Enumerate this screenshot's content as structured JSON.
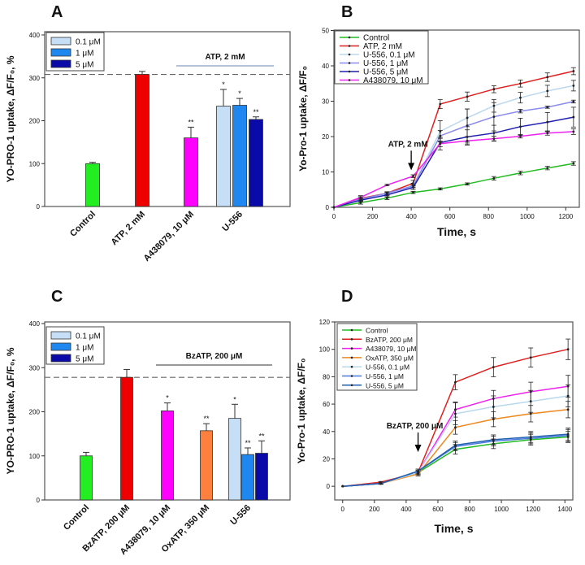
{
  "panel_labels": {
    "a": "A",
    "b": "B",
    "c": "C",
    "d": "D"
  },
  "chart_data": [
    {
      "panel": "A",
      "type": "bar",
      "ylabel": "YO-PRO-1 uptake, ΔF/F₀, %",
      "ylim": [
        0,
        400
      ],
      "yticks": [
        "0",
        "100",
        "200",
        "300",
        "400"
      ],
      "categories": [
        "Control",
        "ATP, 2 mM",
        "A438079, 10 μM",
        "U-556"
      ],
      "bars": [
        {
          "category": "Control",
          "value": 100,
          "error": 3,
          "sig": "",
          "color": "#22ee22"
        },
        {
          "category": "ATP, 2 mM",
          "value": 308,
          "error": 7,
          "sig": "",
          "color": "#ee0000"
        },
        {
          "category": "A438079, 10 μM",
          "value": 160,
          "error": 25,
          "sig": "**",
          "color": "#ff00ff"
        },
        {
          "category": "U-556",
          "series": "0.1 μM",
          "value": 234,
          "error": 39,
          "sig": "*",
          "color": "#c6dff7"
        },
        {
          "category": "U-556",
          "series": "1 μM",
          "value": 236,
          "error": 16,
          "sig": "*",
          "color": "#1e88f0"
        },
        {
          "category": "U-556",
          "series": "5 μM",
          "value": 203,
          "error": 6,
          "sig": "**",
          "color": "#0a0aa8"
        }
      ],
      "legend": [
        {
          "label": "0.1 μM",
          "color": "#c6dff7"
        },
        {
          "label": "1 μM",
          "color": "#1e88f0"
        },
        {
          "label": "5 μM",
          "color": "#0a0aa8"
        }
      ],
      "legend_position": "top-left",
      "reference_line": {
        "value": 308,
        "style": "dashed"
      },
      "annotation": "ATP, 2 mM"
    },
    {
      "panel": "B",
      "type": "line",
      "xlabel": "Time, s",
      "ylabel": "Yo-Pro-1 uptake, ΔF/F₀",
      "xlim": [
        0,
        1270
      ],
      "ylim": [
        0,
        50
      ],
      "xticks": [
        "0",
        "200",
        "400",
        "600",
        "800",
        "1000",
        "1200"
      ],
      "yticks": [
        "0",
        "10",
        "20",
        "30",
        "40",
        "50"
      ],
      "x": [
        0,
        138,
        275,
        410,
        550,
        690,
        828,
        965,
        1105,
        1240
      ],
      "series": [
        {
          "name": "Control",
          "color": "#22bb22",
          "values": [
            0,
            1.3,
            2.6,
            4.2,
            5.2,
            6.6,
            8.2,
            9.7,
            11.1,
            12.4
          ],
          "errors": [
            0,
            0.4,
            0.4,
            0.3,
            0.3,
            0.3,
            0.5,
            0.5,
            0.5,
            0.5
          ]
        },
        {
          "name": "ATP, 2 mM",
          "color": "#e02020",
          "values": [
            0,
            2.5,
            4.0,
            6.8,
            29.2,
            31.3,
            33.4,
            35.0,
            36.8,
            38.5
          ],
          "errors": [
            0,
            0.5,
            0.4,
            0.8,
            1.3,
            1.3,
            1.0,
            1.0,
            1.2,
            1.0
          ]
        },
        {
          "name": "U-556, 0.1 μM",
          "color": "#bcd8ee",
          "values": [
            0,
            2.2,
            3.8,
            6.2,
            21.5,
            25.3,
            28.7,
            31.0,
            32.9,
            34.4
          ],
          "errors": [
            0,
            0.5,
            0.5,
            0.6,
            3.0,
            2.5,
            1.8,
            1.5,
            1.6,
            1.5
          ]
        },
        {
          "name": "U-556, 1 μM",
          "color": "#8a8af0",
          "values": [
            0,
            2.3,
            4.0,
            6.0,
            20.2,
            23.1,
            25.6,
            27.2,
            28.3,
            29.9
          ],
          "errors": [
            0,
            0.4,
            0.4,
            0.5,
            1.5,
            4.7,
            4.0,
            0.5,
            0.3,
            0.4
          ]
        },
        {
          "name": "U-556, 5 μM",
          "color": "#2020b0",
          "values": [
            0,
            2.0,
            3.5,
            5.6,
            18.3,
            19.9,
            21.0,
            22.8,
            24.1,
            25.5
          ],
          "errors": [
            0,
            0.4,
            0.6,
            0.6,
            1.2,
            2.0,
            2.2,
            2.4,
            2.7,
            2.8
          ]
        },
        {
          "name": "A438079, 10 μM",
          "color": "#ee22ee",
          "values": [
            0,
            2.8,
            6.3,
            8.8,
            18.0,
            18.8,
            19.4,
            20.1,
            21.0,
            21.4
          ],
          "errors": [
            0,
            0.5,
            0.2,
            0.4,
            1.8,
            1.2,
            0.7,
            0.5,
            0.6,
            0.8
          ]
        }
      ],
      "legend_position": "top-left",
      "annotation": {
        "text": "ATP, 2 mM",
        "x": 400,
        "y": 10.5,
        "arrow": "down"
      }
    },
    {
      "panel": "C",
      "type": "bar",
      "ylabel": "YO-PRO-1 uptake, ΔF/F₀, %",
      "ylim": [
        0,
        400
      ],
      "yticks": [
        "0",
        "100",
        "200",
        "300",
        "400"
      ],
      "categories": [
        "Control",
        "BzATP, 200 μM",
        "A438079, 10 μM",
        "OxATP, 350 μM",
        "U-556"
      ],
      "bars": [
        {
          "category": "Control",
          "value": 100,
          "error": 8,
          "sig": "",
          "color": "#22ee22"
        },
        {
          "category": "BzATP, 200 μM",
          "value": 278,
          "error": 18,
          "sig": "",
          "color": "#ee0000"
        },
        {
          "category": "A438079, 10 μM",
          "value": 202,
          "error": 18,
          "sig": "*",
          "color": "#ff00ff"
        },
        {
          "category": "OxATP, 350 μM",
          "value": 157,
          "error": 16,
          "sig": "**",
          "color": "#ff7f3f"
        },
        {
          "category": "U-556",
          "series": "0.1 μM",
          "value": 185,
          "error": 32,
          "sig": "*",
          "color": "#c6dff7"
        },
        {
          "category": "U-556",
          "series": "1 μM",
          "value": 103,
          "error": 15,
          "sig": "**",
          "color": "#1e88f0"
        },
        {
          "category": "U-556",
          "series": "5 μM",
          "value": 106,
          "error": 28,
          "sig": "**",
          "color": "#0a0aa8"
        }
      ],
      "legend": [
        {
          "label": "0.1 μM",
          "color": "#c6dff7"
        },
        {
          "label": "1 μM",
          "color": "#1e88f0"
        },
        {
          "label": "5 μM",
          "color": "#0a0aa8"
        }
      ],
      "legend_position": "top-left",
      "reference_line": {
        "value": 278,
        "style": "dashed"
      },
      "annotation": "BzATP, 200 μM"
    },
    {
      "panel": "D",
      "type": "line",
      "xlabel": "Time, s",
      "ylabel": "Yo-Pro-1 uptake, ΔF/F₀",
      "xlim": [
        -50,
        1450
      ],
      "ylim": [
        -10,
        120
      ],
      "xticks": [
        "0",
        "200",
        "400",
        "600",
        "800",
        "1000",
        "1200",
        "1400"
      ],
      "yticks": [
        "0",
        "20",
        "40",
        "60",
        "80",
        "100",
        "120"
      ],
      "x": [
        0,
        240,
        475,
        710,
        950,
        1185,
        1420
      ],
      "series": [
        {
          "name": "Control",
          "color": "#22bb22",
          "values": [
            0,
            2,
            10,
            27,
            31,
            34,
            36
          ],
          "errors": [
            0,
            0.5,
            1.5,
            3.5,
            3.5,
            4,
            4
          ]
        },
        {
          "name": "BzATP, 200 μM",
          "color": "#e02020",
          "values": [
            0,
            3,
            10,
            76,
            87,
            94,
            100
          ],
          "errors": [
            0,
            0.5,
            1.5,
            5.5,
            7,
            7,
            7.5
          ]
        },
        {
          "name": "A438079, 10 μM",
          "color": "#ee22ee",
          "values": [
            0,
            2,
            10,
            56,
            64,
            69,
            73
          ],
          "errors": [
            0,
            0.5,
            1.5,
            5.5,
            6,
            7,
            8
          ]
        },
        {
          "name": "OxATP, 350 μM",
          "color": "#ee8820",
          "values": [
            0,
            2,
            9,
            43,
            49,
            53,
            56
          ],
          "errors": [
            0,
            0.5,
            1.5,
            5,
            5.5,
            6,
            6
          ]
        },
        {
          "name": "U-556, 0.1 μM",
          "color": "#b8d8ee",
          "values": [
            0,
            2,
            10,
            53,
            58,
            62,
            66
          ],
          "errors": [
            0,
            0.5,
            1.5,
            8,
            8,
            8,
            8
          ]
        },
        {
          "name": "U-556, 1 μM",
          "color": "#4a7ae0",
          "values": [
            0,
            2,
            11,
            29,
            33,
            35,
            37
          ],
          "errors": [
            0,
            0.5,
            1.5,
            3,
            3.5,
            4,
            4.5
          ]
        },
        {
          "name": "U-556, 5 μM",
          "color": "#2060b0",
          "values": [
            0,
            2,
            11,
            30,
            34,
            36,
            38
          ],
          "errors": [
            0,
            0.5,
            1.5,
            3,
            3.5,
            4,
            4.5
          ]
        }
      ],
      "legend_position": "top-left",
      "annotation": {
        "text": "BzATP, 200 μM",
        "x": 475,
        "y": 25,
        "arrow": "down"
      }
    }
  ]
}
